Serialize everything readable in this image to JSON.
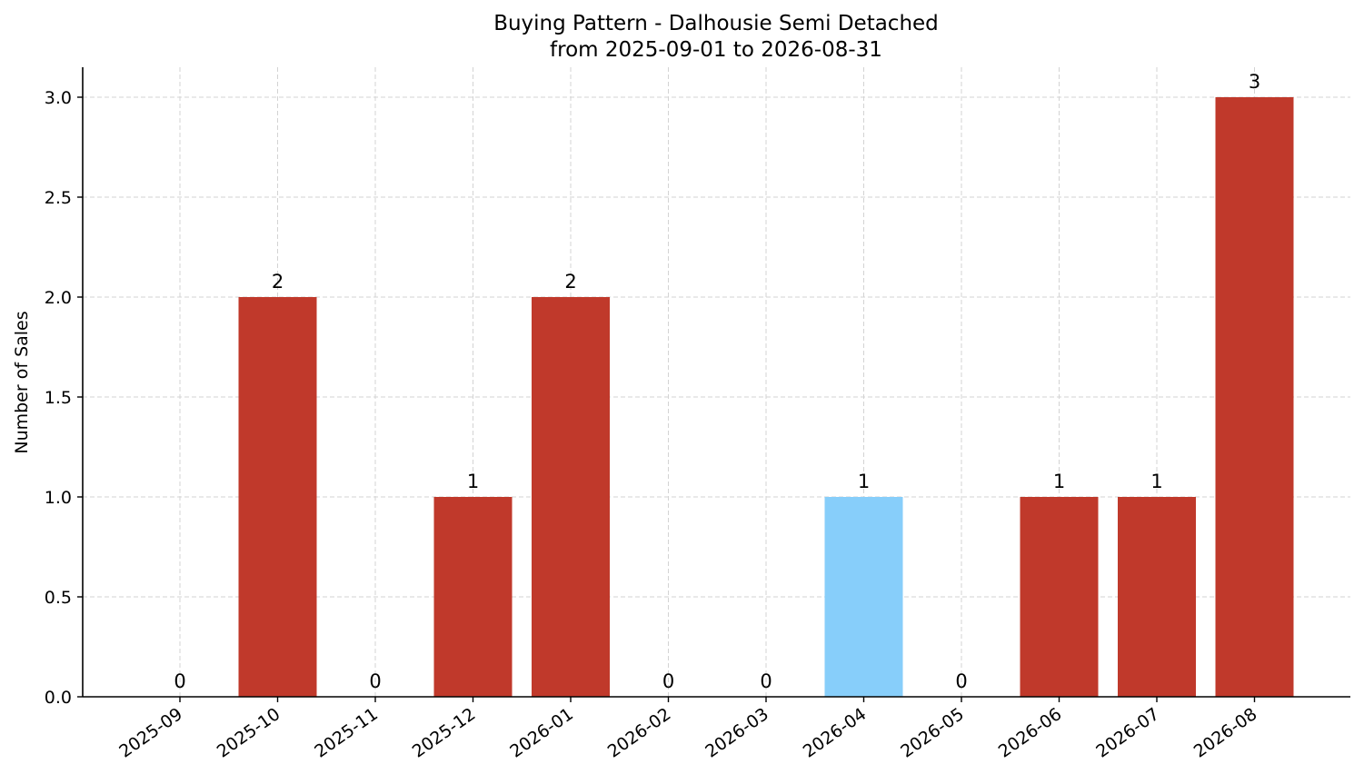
{
  "chart_data": {
    "type": "bar",
    "title": "Buying Pattern - Dalhousie Semi Detached",
    "subtitle": "from 2025-09-01 to 2026-08-31",
    "xlabel": "",
    "ylabel": "Number of Sales",
    "categories": [
      "2025-09",
      "2025-10",
      "2025-11",
      "2025-12",
      "2026-01",
      "2026-02",
      "2026-03",
      "2026-04",
      "2026-05",
      "2026-06",
      "2026-07",
      "2026-08"
    ],
    "values": [
      0,
      2,
      0,
      1,
      2,
      0,
      0,
      1,
      0,
      1,
      1,
      3
    ],
    "data_labels": [
      "0",
      "2",
      "0",
      "1",
      "2",
      "0",
      "0",
      "1",
      "0",
      "1",
      "1",
      "3"
    ],
    "highlight_category": "2026-04",
    "ylim": [
      0,
      3.15
    ],
    "yticks": [
      0.0,
      0.5,
      1.0,
      1.5,
      2.0,
      2.5,
      3.0
    ],
    "ytick_labels": [
      "0.0",
      "0.5",
      "1.0",
      "1.5",
      "2.0",
      "2.5",
      "3.0"
    ],
    "grid": true,
    "legend": "none",
    "colors": {
      "bar": "#c0392b",
      "highlight": "#87cefa"
    }
  }
}
